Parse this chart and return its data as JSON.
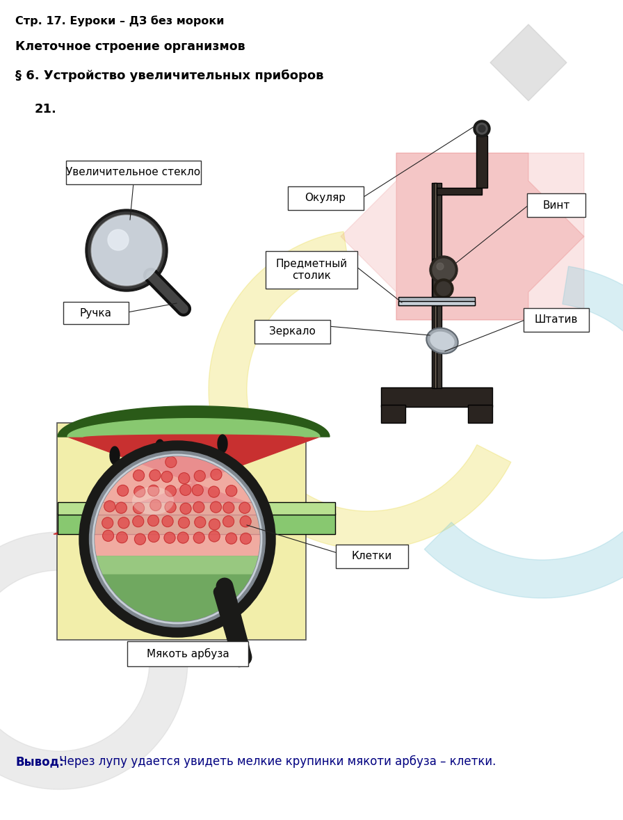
{
  "title1": "Стр. 17. Еуроки – ДЗ без мороки",
  "title2": "Клеточное строение организмов",
  "title3": "§ 6. Устройство увеличительных приборов",
  "number": "21.",
  "conclusion_bold": "Вывод:",
  "conclusion_text": " Через лупу удается увидеть мелкие крупинки мякоти арбуза – клетки.",
  "bg_color": "#ffffff",
  "label_uvl": "Увеличительное стекло",
  "label_ruchka": "Ручка",
  "label_okulyar": "Окуляр",
  "label_vint": "Винт",
  "label_pred": "Предметный\nстолик",
  "label_zerkalo": "Зеркало",
  "label_shtatif": "Штатив",
  "label_kletki": "Клетки",
  "label_myakot": "Мякоть арбуза"
}
